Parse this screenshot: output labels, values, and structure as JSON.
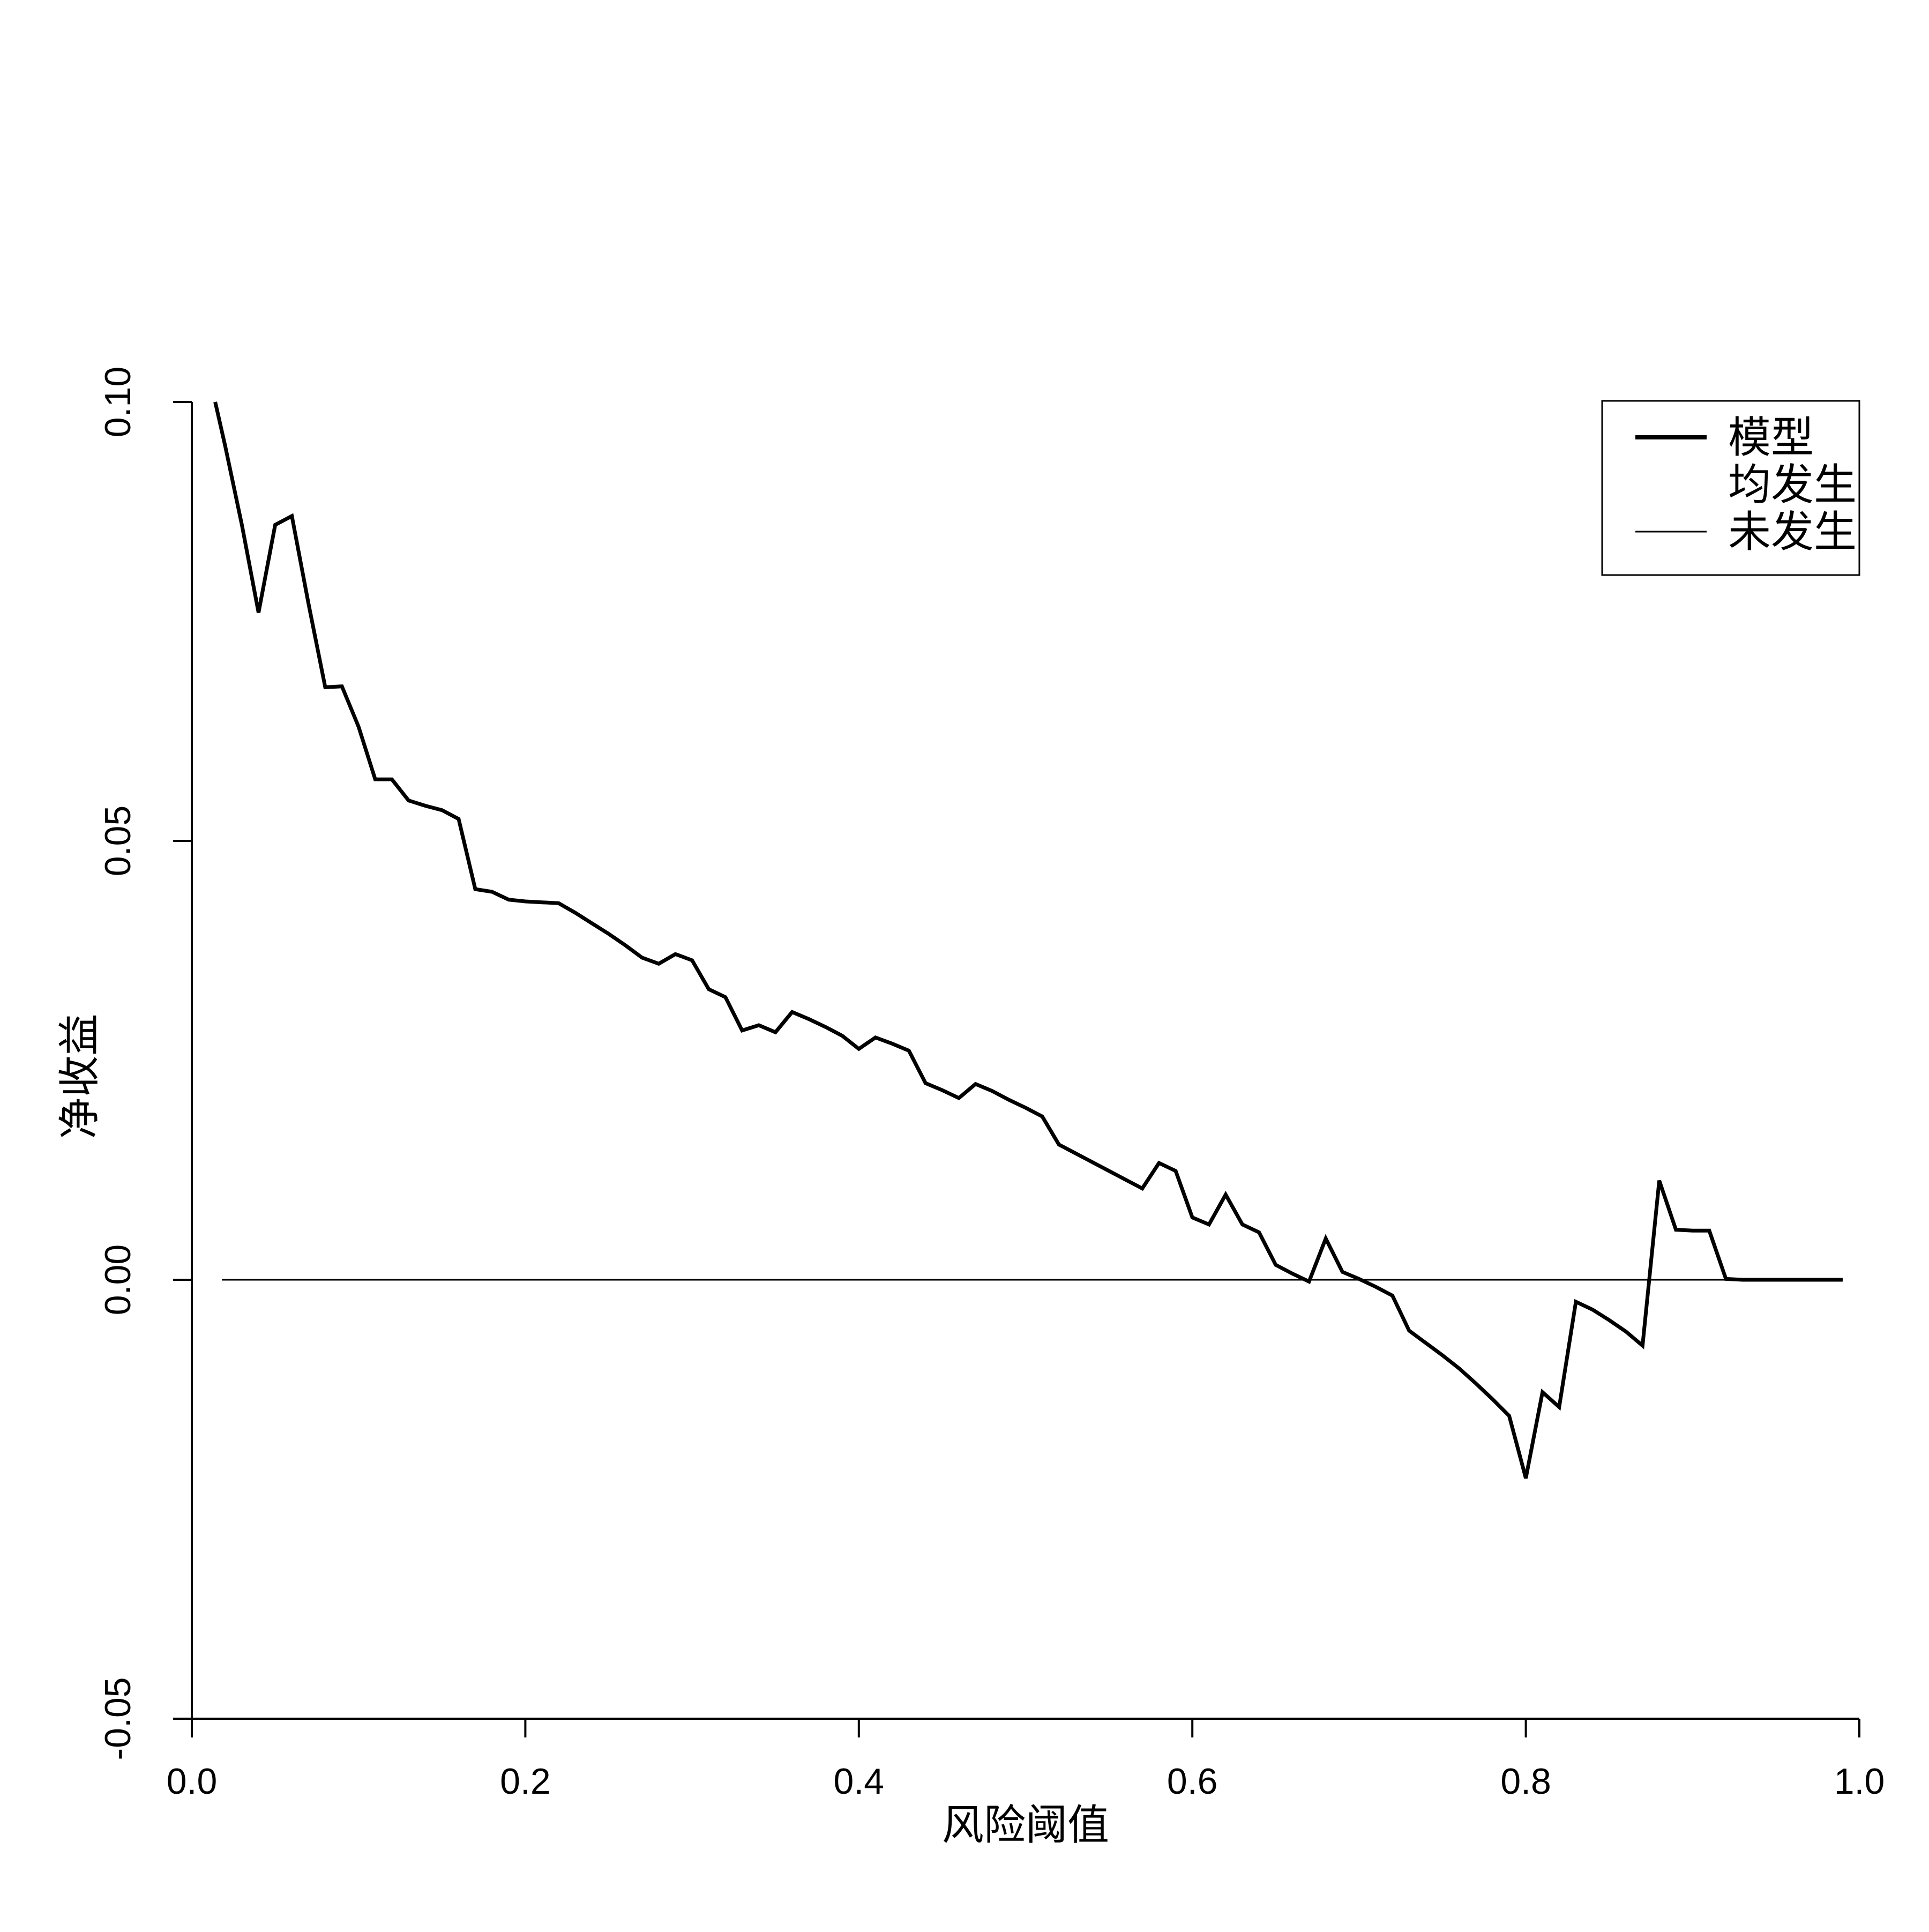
{
  "chart_data": {
    "type": "line",
    "title": "",
    "xlabel": "风险阈值",
    "ylabel": "净收益",
    "xlim": [
      0.0,
      1.0
    ],
    "ylim": [
      -0.05,
      0.1
    ],
    "x_ticks": [
      "0.0",
      "0.2",
      "0.4",
      "0.6",
      "0.8",
      "1.0"
    ],
    "y_ticks": [
      "-0.05",
      "0.00",
      "0.05",
      "0.10"
    ],
    "grid": false,
    "legend_position": "top-right",
    "legend": [
      "模型",
      "均发生",
      "未发生"
    ],
    "series": [
      {
        "name": "模型",
        "color": "#000000",
        "x": [
          0.014,
          0.02,
          0.03,
          0.04,
          0.05,
          0.06,
          0.07,
          0.08,
          0.09,
          0.1,
          0.11,
          0.12,
          0.13,
          0.14,
          0.15,
          0.16,
          0.17,
          0.18,
          0.19,
          0.2,
          0.21,
          0.22,
          0.23,
          0.24,
          0.25,
          0.26,
          0.27,
          0.28,
          0.29,
          0.3,
          0.31,
          0.32,
          0.33,
          0.34,
          0.35,
          0.36,
          0.37,
          0.38,
          0.39,
          0.4,
          0.41,
          0.42,
          0.43,
          0.44,
          0.45,
          0.46,
          0.47,
          0.48,
          0.49,
          0.5,
          0.51,
          0.52,
          0.53,
          0.54,
          0.55,
          0.56,
          0.57,
          0.58,
          0.59,
          0.6,
          0.61,
          0.62,
          0.63,
          0.64,
          0.65,
          0.66,
          0.67,
          0.68,
          0.69,
          0.7,
          0.71,
          0.72,
          0.73,
          0.74,
          0.75,
          0.76,
          0.77,
          0.78,
          0.79,
          0.8,
          0.81,
          0.82,
          0.83,
          0.84,
          0.85,
          0.86,
          0.87,
          0.88,
          0.89,
          0.9,
          0.91,
          0.92,
          0.93,
          0.94,
          0.95,
          0.96,
          0.97,
          0.98,
          0.99
        ],
        "y": [
          0.1,
          0.095,
          0.086,
          0.076,
          0.086,
          0.087,
          0.077,
          0.0675,
          0.0676,
          0.063,
          0.057,
          0.057,
          0.0546,
          0.054,
          0.0535,
          0.0525,
          0.0445,
          0.0442,
          0.0433,
          0.0431,
          0.043,
          0.0429,
          0.0418,
          0.0406,
          0.0394,
          0.0381,
          0.0367,
          0.036,
          0.0371,
          0.0364,
          0.0331,
          0.0322,
          0.0284,
          0.029,
          0.0282,
          0.0305,
          0.0297,
          0.0288,
          0.0278,
          0.0263,
          0.0276,
          0.0269,
          0.0261,
          0.0224,
          0.0216,
          0.0207,
          0.0223,
          0.0215,
          0.0205,
          0.0196,
          0.0186,
          0.0154,
          0.0144,
          0.0134,
          0.0124,
          0.0114,
          0.0104,
          0.0133,
          0.0124,
          0.0071,
          0.0063,
          0.0097,
          0.0063,
          0.0054,
          0.0017,
          0.0007,
          -0.0002,
          0.0047,
          0.0009,
          0.0001,
          -0.0008,
          -0.0018,
          -0.0058,
          -0.0072,
          -0.0086,
          -0.0101,
          -0.0118,
          -0.0136,
          -0.0155,
          -0.0226,
          -0.0128,
          -0.0145,
          -0.0025,
          -0.0034,
          -0.0046,
          -0.0059,
          -0.0075,
          0.0113,
          0.0057,
          0.0056,
          0.0056,
          0.0001,
          0.0,
          0.0,
          0.0,
          0.0,
          0.0,
          0.0,
          0.0
        ]
      },
      {
        "name": "均发生",
        "color": "#000000",
        "x": [],
        "y": []
      },
      {
        "name": "未发生",
        "color": "#000000",
        "x": [
          0.018,
          0.99
        ],
        "y": [
          0.0,
          0.0
        ]
      }
    ]
  }
}
